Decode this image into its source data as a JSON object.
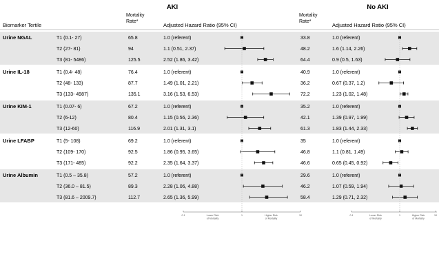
{
  "headers": {
    "biomarker_tertile": "Biomarker Tertile",
    "mortality_rate": [
      "Mortality",
      "Rate*"
    ],
    "hr_label": "Adjusted Hazard Ratio (95% CI)",
    "aki": "AKI",
    "no_aki": "No AKI"
  },
  "axis_notes": {
    "lower_risk": [
      "Lower Risk",
      "of Mortality"
    ],
    "higher_risk": [
      "Higher Risk",
      "of Mortality"
    ],
    "ticks": [
      "0.1",
      "1",
      "10"
    ]
  },
  "colors": {
    "band": "#e6e6e6",
    "text": "#222222",
    "ref_line": "#bbbbbb"
  },
  "groups": [
    {
      "name": "Urine NGAL",
      "shaded": true,
      "rows": [
        {
          "tertile": "T1 (0.1- 27)",
          "aki": {
            "rate": "65.8",
            "hr_text": "1.0 (referent)",
            "hr": 1.0
          },
          "noaki": {
            "rate": "33.8",
            "hr_text": "1.0 (referent)",
            "hr": 1.0
          }
        },
        {
          "tertile": "T2 (27- 81)",
          "aki": {
            "rate": "94",
            "hr_text": "1.1 (0.51, 2.37)",
            "hr": 1.1,
            "lo": 0.51,
            "hi": 2.37
          },
          "noaki": {
            "rate": "48.2",
            "hr_text": "1.6 (1.14, 2.26)",
            "hr": 1.6,
            "lo": 1.14,
            "hi": 2.26
          }
        },
        {
          "tertile": "T3 (81- 5486)",
          "aki": {
            "rate": "125.5",
            "hr_text": "2.52 (1.86, 3.42)",
            "hr": 2.52,
            "lo": 1.86,
            "hi": 3.42
          },
          "noaki": {
            "rate": "64.4",
            "hr_text": "0.9 (0.5, 1.63)",
            "hr": 0.9,
            "lo": 0.5,
            "hi": 1.63
          }
        }
      ]
    },
    {
      "name": "Urine IL-18",
      "shaded": false,
      "rows": [
        {
          "tertile": "T1 (0.4- 48)",
          "aki": {
            "rate": "76.4",
            "hr_text": "1.0 (referent)",
            "hr": 1.0
          },
          "noaki": {
            "rate": "40.9",
            "hr_text": "1.0 (referent)",
            "hr": 1.0
          }
        },
        {
          "tertile": "T2 (48- 133)",
          "aki": {
            "rate": "87.7",
            "hr_text": "1.49 (1.01, 2.21)",
            "hr": 1.49,
            "lo": 1.01,
            "hi": 2.21
          },
          "noaki": {
            "rate": "36.2",
            "hr_text": "0.67 (0.37, 1.2)",
            "hr": 0.67,
            "lo": 0.37,
            "hi": 1.2
          }
        },
        {
          "tertile": "T3 (133- 4987)",
          "aki": {
            "rate": "135.1",
            "hr_text": "3.16 (1.53, 6.53)",
            "hr": 3.16,
            "lo": 1.53,
            "hi": 6.53
          },
          "noaki": {
            "rate": "72.2",
            "hr_text": "1.23 (1.02, 1.48)",
            "hr": 1.23,
            "lo": 1.02,
            "hi": 1.48
          }
        }
      ]
    },
    {
      "name": "Urine KIM-1",
      "shaded": true,
      "rows": [
        {
          "tertile": "T1 (0.07- 6)",
          "aki": {
            "rate": "67.2",
            "hr_text": "1.0 (referent)",
            "hr": 1.0
          },
          "noaki": {
            "rate": "35.2",
            "hr_text": "1.0 (referent)",
            "hr": 1.0
          }
        },
        {
          "tertile": "T2 (6-12)",
          "aki": {
            "rate": "80.4",
            "hr_text": "1.15 (0.56, 2.36)",
            "hr": 1.15,
            "lo": 0.56,
            "hi": 2.36
          },
          "noaki": {
            "rate": "42.1",
            "hr_text": "1.39 (0.97, 1.99)",
            "hr": 1.39,
            "lo": 0.97,
            "hi": 1.99
          }
        },
        {
          "tertile": "T3 (12-60)",
          "aki": {
            "rate": "116.9",
            "hr_text": "2.01 (1.31, 3.1)",
            "hr": 2.01,
            "lo": 1.31,
            "hi": 3.1
          },
          "noaki": {
            "rate": "61.3",
            "hr_text": "1.83 (1.44, 2.33)",
            "hr": 1.83,
            "lo": 1.44,
            "hi": 2.33
          }
        }
      ]
    },
    {
      "name": "Urine LFABP",
      "shaded": false,
      "rows": [
        {
          "tertile": "T1 (5- 108)",
          "aki": {
            "rate": "69.2",
            "hr_text": "1.0 (referent)",
            "hr": 1.0
          },
          "noaki": {
            "rate": "35",
            "hr_text": "1.0 (referent)",
            "hr": 1.0
          }
        },
        {
          "tertile": "T2 (109- 170)",
          "aki": {
            "rate": "92.5",
            "hr_text": "1.86 (0.95, 3.65)",
            "hr": 1.86,
            "lo": 0.95,
            "hi": 3.65
          },
          "noaki": {
            "rate": "46.8",
            "hr_text": "1.1 (0.81, 1.49)",
            "hr": 1.1,
            "lo": 0.81,
            "hi": 1.49
          }
        },
        {
          "tertile": "T3 (171- 485)",
          "aki": {
            "rate": "92.2",
            "hr_text": "2.35 (1.64, 3.37)",
            "hr": 2.35,
            "lo": 1.64,
            "hi": 3.37
          },
          "noaki": {
            "rate": "46.6",
            "hr_text": "0.65 (0.45, 0.92)",
            "hr": 0.65,
            "lo": 0.45,
            "hi": 0.92
          }
        }
      ]
    },
    {
      "name": "Urine Albumin",
      "shaded": true,
      "rows": [
        {
          "tertile": "T1 (0.5 – 35.8)",
          "aki": {
            "rate": "57.2",
            "hr_text": "1.0 (referent)",
            "hr": 1.0
          },
          "noaki": {
            "rate": "29.6",
            "hr_text": "1.0 (referent)",
            "hr": 1.0
          }
        },
        {
          "tertile": "T2 (36.0 – 81.5)",
          "aki": {
            "rate": "89.3",
            "hr_text": "2.28 (1.06, 4.88)",
            "hr": 2.28,
            "lo": 1.06,
            "hi": 4.88
          },
          "noaki": {
            "rate": "46.2",
            "hr_text": "1.07 (0.59, 1.94)",
            "hr": 1.07,
            "lo": 0.59,
            "hi": 1.94
          }
        },
        {
          "tertile": "T3 (81.6 – 2009.7)",
          "aki": {
            "rate": "112.7",
            "hr_text": "2.65 (1.36, 5.99)",
            "hr": 2.65,
            "lo": 1.36,
            "hi": 5.99
          },
          "noaki": {
            "rate": "58.4",
            "hr_text": "1.29 (0.71, 2.32)",
            "hr": 1.29,
            "lo": 0.71,
            "hi": 2.32
          }
        }
      ]
    }
  ],
  "chart_data": {
    "type": "forest",
    "scale": "log",
    "xlim": [
      0.1,
      10
    ],
    "x_ticks": [
      0.1,
      1,
      10
    ],
    "reference_value": 1,
    "panels": [
      "AKI",
      "No AKI"
    ],
    "series": [
      {
        "name": "AKI",
        "categories": [
          "Urine NGAL T1",
          "Urine NGAL T2",
          "Urine NGAL T3",
          "Urine IL-18 T1",
          "Urine IL-18 T2",
          "Urine IL-18 T3",
          "Urine KIM-1 T1",
          "Urine KIM-1 T2",
          "Urine KIM-1 T3",
          "Urine LFABP T1",
          "Urine LFABP T2",
          "Urine LFABP T3",
          "Urine Albumin T1",
          "Urine Albumin T2",
          "Urine Albumin T3"
        ],
        "hr": [
          1.0,
          1.1,
          2.52,
          1.0,
          1.49,
          3.16,
          1.0,
          1.15,
          2.01,
          1.0,
          1.86,
          2.35,
          1.0,
          2.28,
          2.65
        ],
        "ci_low": [
          null,
          0.51,
          1.86,
          null,
          1.01,
          1.53,
          null,
          0.56,
          1.31,
          null,
          0.95,
          1.64,
          null,
          1.06,
          1.36
        ],
        "ci_high": [
          null,
          2.37,
          3.42,
          null,
          2.21,
          6.53,
          null,
          2.36,
          3.1,
          null,
          3.65,
          3.37,
          null,
          4.88,
          5.99
        ]
      },
      {
        "name": "No AKI",
        "categories": [
          "Urine NGAL T1",
          "Urine NGAL T2",
          "Urine NGAL T3",
          "Urine IL-18 T1",
          "Urine IL-18 T2",
          "Urine IL-18 T3",
          "Urine KIM-1 T1",
          "Urine KIM-1 T2",
          "Urine KIM-1 T3",
          "Urine LFABP T1",
          "Urine LFABP T2",
          "Urine LFABP T3",
          "Urine Albumin T1",
          "Urine Albumin T2",
          "Urine Albumin T3"
        ],
        "hr": [
          1.0,
          1.6,
          0.9,
          1.0,
          0.67,
          1.23,
          1.0,
          1.39,
          1.83,
          1.0,
          1.1,
          0.65,
          1.0,
          1.07,
          1.29
        ],
        "ci_low": [
          null,
          1.14,
          0.5,
          null,
          0.37,
          1.02,
          null,
          0.97,
          1.44,
          null,
          0.81,
          0.45,
          null,
          0.59,
          0.71
        ],
        "ci_high": [
          null,
          2.26,
          1.63,
          null,
          1.2,
          1.48,
          null,
          1.99,
          2.33,
          null,
          1.49,
          0.92,
          null,
          1.94,
          2.32
        ]
      }
    ]
  }
}
